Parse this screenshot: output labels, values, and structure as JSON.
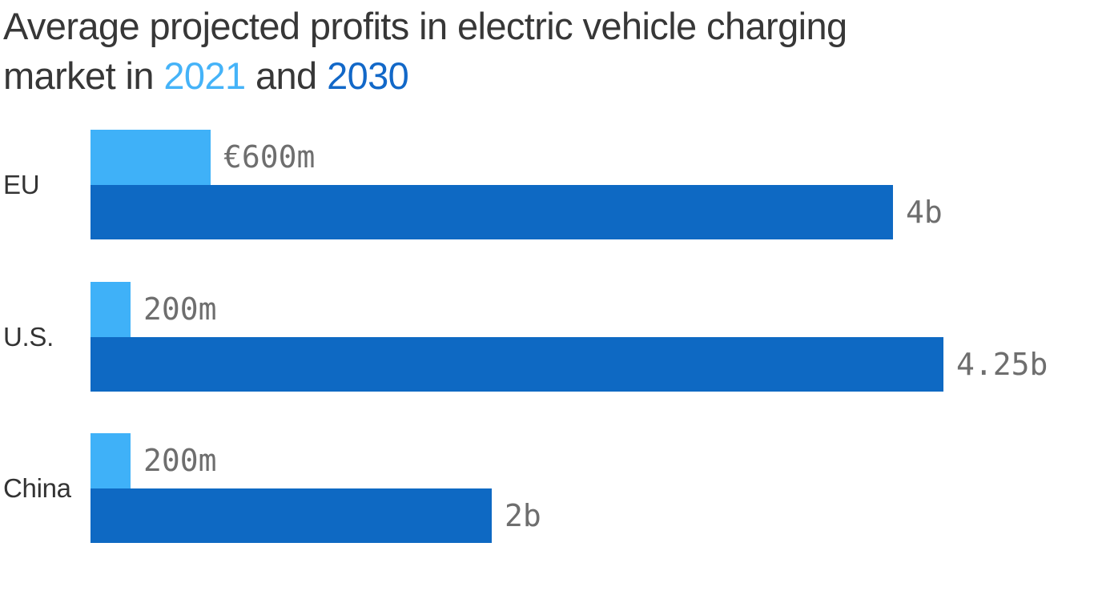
{
  "title": {
    "line1": "Average projected profits in electric vehicle charging",
    "line2_prefix": "market in ",
    "year1": "2021",
    "connector": " and ",
    "year2": "2030"
  },
  "colors": {
    "title_text": "#373737",
    "title_year_2021": "#45b3f8",
    "title_year_2030": "#1268c8",
    "bar_2021": "#3fb1f8",
    "bar_2030": "#0e69c3",
    "category_label": "#333333",
    "value_label": "#6e6e6e",
    "background": "#ffffff"
  },
  "chart_data": {
    "type": "bar",
    "orientation": "horizontal",
    "title": "Average projected profits in electric vehicle charging market in 2021 and 2030",
    "categories": [
      "EU",
      "U.S.",
      "China"
    ],
    "series": [
      {
        "name": "2021",
        "color": "#3fb1f8",
        "values_millions": [
          600,
          200,
          200
        ],
        "value_labels": [
          "€600m",
          "200m",
          "200m"
        ]
      },
      {
        "name": "2030",
        "color": "#0e69c3",
        "values_millions": [
          4000,
          4250,
          2000
        ],
        "value_labels": [
          "4b",
          "4.25b",
          "2b"
        ]
      }
    ],
    "xlim_millions": [
      0,
      4250
    ],
    "grid": false,
    "axes_shown": false,
    "legend_position": "inline-in-title",
    "value_label_position": "right-of-bar-end"
  }
}
